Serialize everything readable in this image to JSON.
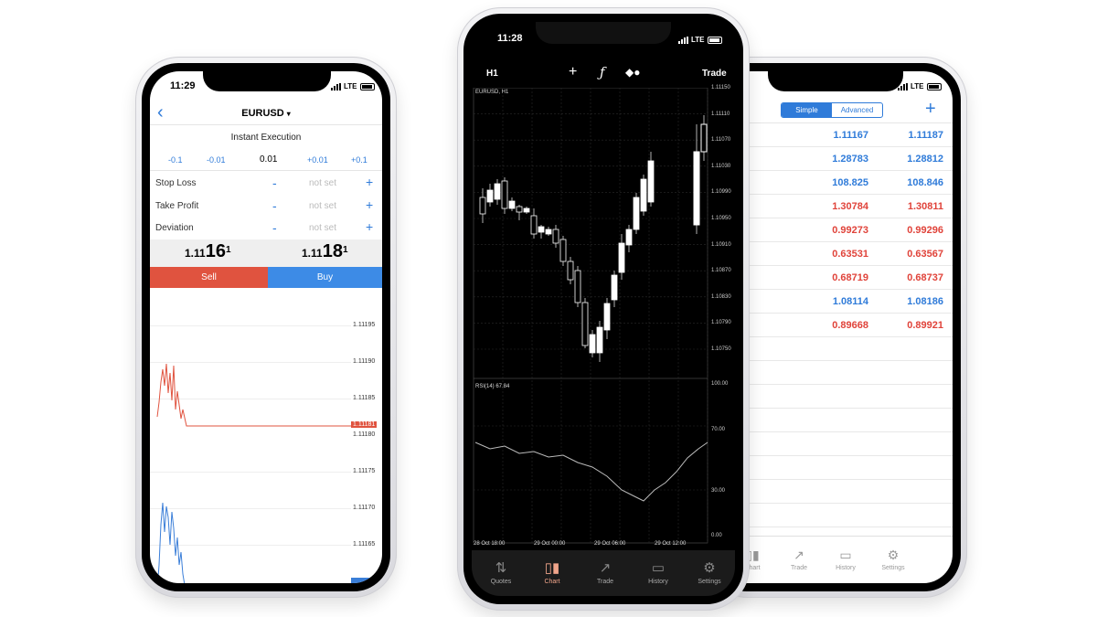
{
  "left_phone": {
    "time": "11:29",
    "network": "LTE",
    "back_icon": "chevron-left-icon",
    "symbol": "EURUSD",
    "symbol_arrow": "▾",
    "execution": "Instant Execution",
    "steps": [
      "-0.1",
      "-0.01",
      "0.01",
      "+0.01",
      "+0.1"
    ],
    "rows": [
      {
        "label": "Stop Loss",
        "minus": "-",
        "value": "not set",
        "plus": "+"
      },
      {
        "label": "Take Profit",
        "minus": "-",
        "value": "not set",
        "plus": "+"
      },
      {
        "label": "Deviation",
        "minus": "-",
        "value": "not set",
        "plus": "+"
      }
    ],
    "sell_price": {
      "prefix": "1.11",
      "main": "16",
      "sup": "1"
    },
    "buy_price": {
      "prefix": "1.11",
      "main": "18",
      "sup": "1"
    },
    "sell_label": "Sell",
    "buy_label": "Buy",
    "axis_labels": [
      "1.11195",
      "1.11190",
      "1.11185",
      "1.11181",
      "1.11180",
      "1.11175",
      "1.11170",
      "1.11165"
    ],
    "sell_line_color": "#e0533f",
    "buy_line_color": "#3a7ed8"
  },
  "center_phone": {
    "time": "11:28",
    "network": "LTE",
    "timeframe": "H1",
    "crosshair_icon": "crosshair-icon",
    "indicator_icon": "function-icon",
    "objects_icon": "shapes-icon",
    "trade_label": "Trade",
    "chart_label": "EURUSD, H1",
    "price_axis": [
      "1.11150",
      "1.11110",
      "1.11070",
      "1.11030",
      "1.10990",
      "1.10950",
      "1.10910",
      "1.10870",
      "1.10830",
      "1.10790",
      "1.10750"
    ],
    "rsi_label": "RSI(14) 67.84",
    "rsi_axis": [
      "100.00",
      "70.00",
      "30.00",
      "0.00"
    ],
    "time_axis": [
      "28 Oct 18:00",
      "29 Oct 00:00",
      "29 Oct 06:00",
      "29 Oct 12:00"
    ],
    "tabs": [
      {
        "label": "Quotes",
        "icon": "quotes-icon"
      },
      {
        "label": "Chart",
        "icon": "candles-icon"
      },
      {
        "label": "Trade",
        "icon": "trade-icon"
      },
      {
        "label": "History",
        "icon": "inbox-icon"
      },
      {
        "label": "Settings",
        "icon": "gear-icon"
      }
    ]
  },
  "right_phone": {
    "time_fragment": "8",
    "network": "LTE",
    "segment_simple": "Simple",
    "segment_advanced": "Advanced",
    "add_icon": "plus-icon",
    "quotes": [
      {
        "bid": "1.11167",
        "ask": "1.11187",
        "color": "#2f7bd9"
      },
      {
        "bid": "1.28783",
        "ask": "1.28812",
        "color": "#2f7bd9"
      },
      {
        "bid": "108.825",
        "ask": "108.846",
        "color": "#2f7bd9"
      },
      {
        "bid": "1.30784",
        "ask": "1.30811",
        "color": "#e0433a"
      },
      {
        "bid": "0.99273",
        "ask": "0.99296",
        "color": "#e0433a"
      },
      {
        "bid": "0.63531",
        "ask": "0.63567",
        "color": "#e0433a"
      },
      {
        "bid": "0.68719",
        "ask": "0.68737",
        "color": "#e0433a"
      },
      {
        "bid": "1.08114",
        "ask": "1.08186",
        "color": "#2f7bd9"
      },
      {
        "bid": "0.89668",
        "ask": "0.89921",
        "color": "#e0433a"
      }
    ],
    "tabs": [
      {
        "label": "Chart",
        "icon": "candles-icon"
      },
      {
        "label": "Trade",
        "icon": "trade-icon"
      },
      {
        "label": "History",
        "icon": "inbox-icon"
      },
      {
        "label": "Settings",
        "icon": "gear-icon"
      }
    ]
  }
}
